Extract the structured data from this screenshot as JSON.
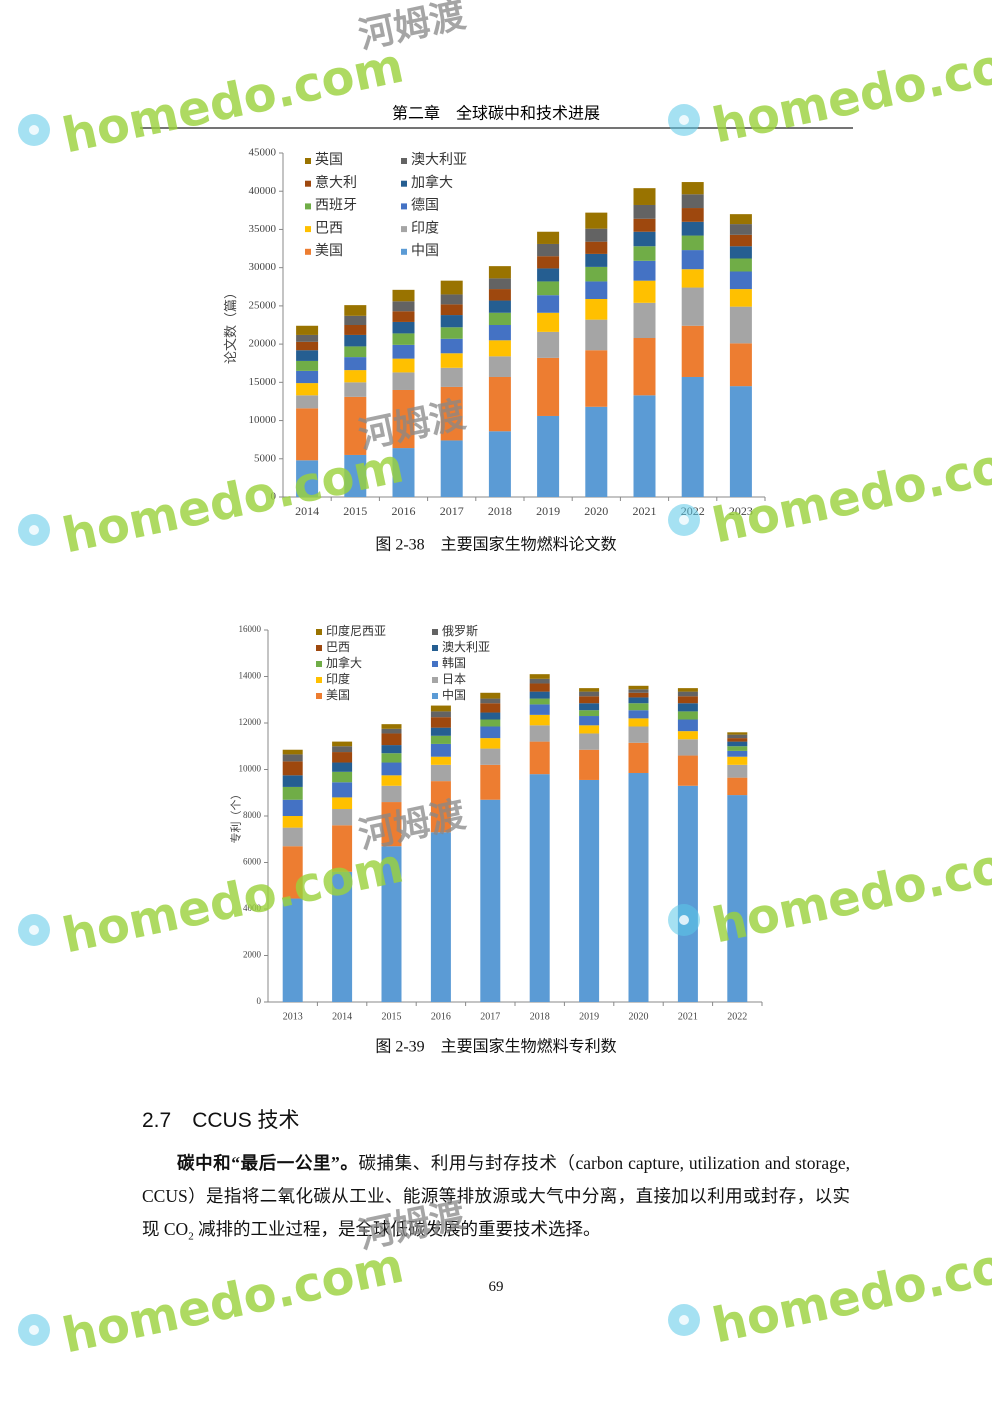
{
  "header": {
    "title": "第二章　全球碳中和技术进展"
  },
  "watermark": {
    "logo": "homedo.com",
    "name": "河姆渡"
  },
  "chart_data": [
    {
      "type": "stacked_bar",
      "ylabel": "论文数（篇）",
      "caption": "图 2-38　主要国家生物燃料论文数",
      "categories": [
        "2014",
        "2015",
        "2016",
        "2017",
        "2018",
        "2019",
        "2020",
        "2021",
        "2022",
        "2023"
      ],
      "ylim": [
        0,
        45000
      ],
      "yticks": [
        0,
        5000,
        10000,
        15000,
        20000,
        25000,
        30000,
        35000,
        40000,
        45000
      ],
      "series": [
        {
          "name": "中国",
          "color": "#5b9bd5",
          "values": [
            4800,
            5500,
            6400,
            7400,
            8600,
            10600,
            11800,
            13300,
            15700,
            14500
          ]
        },
        {
          "name": "美国",
          "color": "#ed7d31",
          "values": [
            6800,
            7600,
            7600,
            7000,
            7100,
            7600,
            7400,
            7500,
            6700,
            5600
          ]
        },
        {
          "name": "印度",
          "color": "#a5a5a5",
          "values": [
            1700,
            1900,
            2300,
            2500,
            2700,
            3400,
            4000,
            4600,
            5000,
            4800
          ]
        },
        {
          "name": "巴西",
          "color": "#ffc000",
          "values": [
            1600,
            1600,
            1800,
            1900,
            2100,
            2500,
            2700,
            2900,
            2400,
            2300
          ]
        },
        {
          "name": "德国",
          "color": "#4472c4",
          "values": [
            1600,
            1700,
            1800,
            1900,
            2000,
            2300,
            2300,
            2600,
            2500,
            2300
          ]
        },
        {
          "name": "西班牙",
          "color": "#70ad47",
          "values": [
            1300,
            1400,
            1500,
            1500,
            1600,
            1800,
            1900,
            1900,
            1900,
            1700
          ]
        },
        {
          "name": "加拿大",
          "color": "#255e91",
          "values": [
            1400,
            1500,
            1500,
            1600,
            1600,
            1700,
            1700,
            1900,
            1800,
            1600
          ]
        },
        {
          "name": "意大利",
          "color": "#9e480e",
          "values": [
            1100,
            1300,
            1400,
            1400,
            1500,
            1600,
            1600,
            1700,
            1800,
            1500
          ]
        },
        {
          "name": "澳大利亚",
          "color": "#636363",
          "values": [
            900,
            1200,
            1300,
            1300,
            1400,
            1600,
            1700,
            1800,
            1800,
            1400
          ]
        },
        {
          "name": "英国",
          "color": "#997300",
          "values": [
            1200,
            1400,
            1500,
            1800,
            1600,
            1600,
            2100,
            2200,
            1600,
            1300
          ]
        }
      ]
    },
    {
      "type": "stacked_bar",
      "ylabel": "专利（个）",
      "caption": "图 2-39　主要国家生物燃料专利数",
      "categories": [
        "2013",
        "2014",
        "2015",
        "2016",
        "2017",
        "2018",
        "2019",
        "2020",
        "2021",
        "2022"
      ],
      "ylim": [
        0,
        16000
      ],
      "yticks": [
        0,
        2000,
        4000,
        6000,
        8000,
        10000,
        12000,
        14000,
        16000
      ],
      "series": [
        {
          "name": "中国",
          "color": "#5b9bd5",
          "values": [
            4450,
            5600,
            6700,
            7300,
            8700,
            9800,
            9550,
            9850,
            9300,
            8900
          ]
        },
        {
          "name": "美国",
          "color": "#ed7d31",
          "values": [
            2250,
            2000,
            1900,
            2200,
            1500,
            1400,
            1300,
            1300,
            1300,
            750
          ]
        },
        {
          "name": "日本",
          "color": "#a5a5a5",
          "values": [
            800,
            700,
            700,
            700,
            700,
            700,
            700,
            700,
            700,
            550
          ]
        },
        {
          "name": "印度",
          "color": "#ffc000",
          "values": [
            500,
            500,
            450,
            350,
            450,
            450,
            350,
            350,
            350,
            350
          ]
        },
        {
          "name": "韩国",
          "color": "#4472c4",
          "values": [
            700,
            650,
            550,
            550,
            500,
            450,
            400,
            350,
            500,
            250
          ]
        },
        {
          "name": "加拿大",
          "color": "#70ad47",
          "values": [
            550,
            450,
            400,
            350,
            300,
            250,
            250,
            300,
            350,
            200
          ]
        },
        {
          "name": "澳大利亚",
          "color": "#255e91",
          "values": [
            500,
            400,
            350,
            350,
            300,
            300,
            300,
            250,
            350,
            200
          ]
        },
        {
          "name": "巴西",
          "color": "#9e480e",
          "values": [
            600,
            450,
            500,
            450,
            400,
            350,
            300,
            200,
            300,
            150
          ]
        },
        {
          "name": "俄罗斯",
          "color": "#636363",
          "values": [
            300,
            250,
            200,
            250,
            200,
            200,
            200,
            150,
            200,
            150
          ]
        },
        {
          "name": "印度尼西亚",
          "color": "#997300",
          "values": [
            200,
            200,
            200,
            250,
            250,
            200,
            150,
            150,
            150,
            100
          ]
        }
      ]
    }
  ],
  "section": {
    "heading": "2.7　CCUS 技术",
    "paragraph": {
      "lead": "碳中和“最后一公里”。",
      "before": "碳捕集、利用与封存技术（carbon capture, utilization and storage, CCUS）是指将二氧化碳从工业、能源等排放源或大气中分离，直接加以利用或封存，以实现 ",
      "chem": "CO",
      "sub": "2",
      "after": " 减排的工业过程，是全球低碳发展的重要技术选择。"
    }
  },
  "footer": {
    "page": "69"
  }
}
